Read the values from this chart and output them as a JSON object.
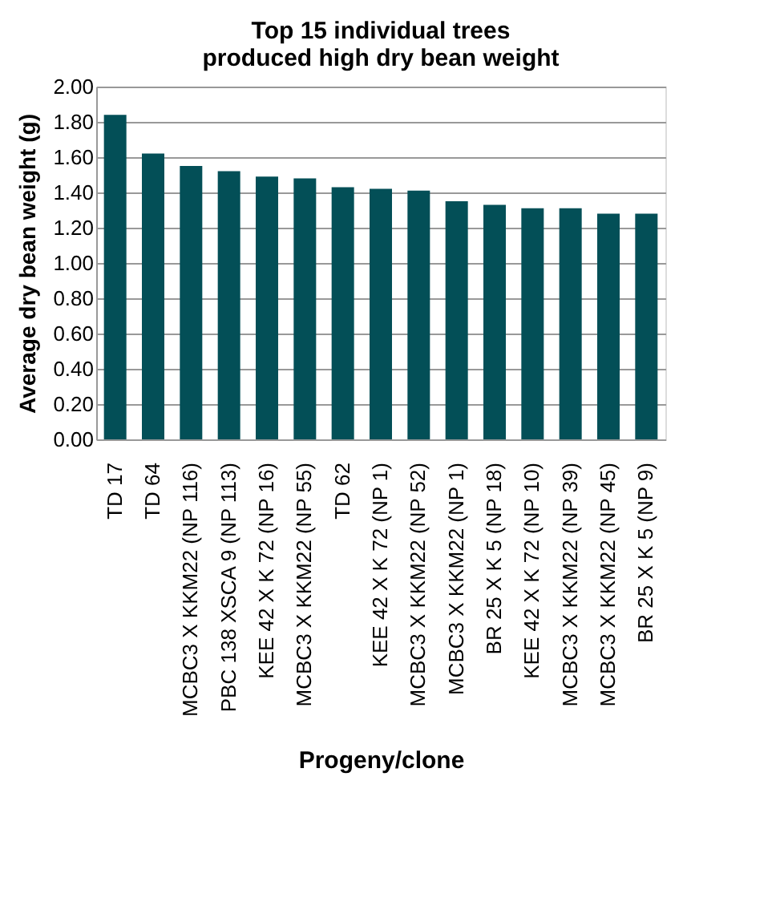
{
  "chart_data": {
    "type": "bar",
    "title": [
      "Top 15 individual trees",
      "produced high dry bean weight"
    ],
    "xlabel": "Progeny/clone",
    "ylabel": "Average dry bean weight (g)",
    "categories": [
      "TD 17",
      "TD 64",
      "MCBC3 X KKM22 (NP 116)",
      "PBC 138 XSCA 9 (NP 113)",
      "KEE 42 X K 72 (NP 16)",
      "MCBC3 X KKM22 (NP 55)",
      "TD 62",
      "KEE 42 X K 72 (NP 1)",
      "MCBC3 X KKM22 (NP 52)",
      "MCBC3 X KKM22 (NP 1)",
      "BR 25 X K 5 (NP 18)",
      "KEE 42 X K 72 (NP 10)",
      "MCBC3 X KKM22 (NP 39)",
      "MCBC3 X KKM22 (NP 45)",
      "BR 25 X K 5 (NP 9)"
    ],
    "values": [
      1.84,
      1.62,
      1.55,
      1.52,
      1.49,
      1.48,
      1.43,
      1.42,
      1.41,
      1.35,
      1.33,
      1.31,
      1.31,
      1.28,
      1.28
    ],
    "color": "#034f57",
    "ylim": [
      0,
      2
    ],
    "yticks": [
      {
        "value": 0,
        "label": "0.00"
      },
      {
        "value": 0.2,
        "label": "0.20"
      },
      {
        "value": 0.4,
        "label": "0.40"
      },
      {
        "value": 0.6,
        "label": "0.60"
      },
      {
        "value": 0.8,
        "label": "0.80"
      },
      {
        "value": 1,
        "label": "1.00"
      },
      {
        "value": 1.2,
        "label": "1.20"
      },
      {
        "value": 1.4,
        "label": "1.40"
      },
      {
        "value": 1.6,
        "label": "1.60"
      },
      {
        "value": 1.8,
        "label": "1.80"
      },
      {
        "value": 2,
        "label": "2.00"
      }
    ],
    "grid": "y"
  }
}
